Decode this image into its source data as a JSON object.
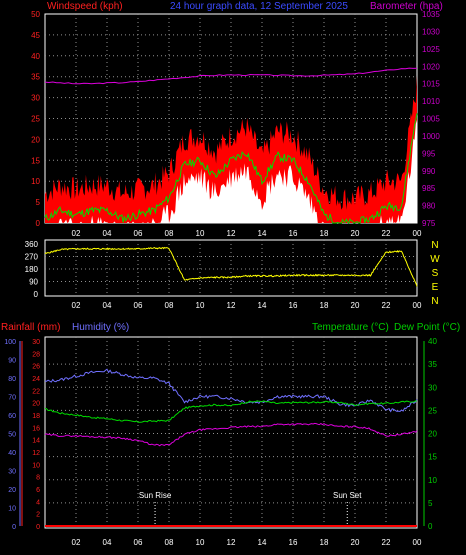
{
  "header": {
    "wind_label": "Windspeed (kph)",
    "title": "24 hour graph data, 12 September 2025",
    "baro_label": "Barometer (hpa)"
  },
  "colors": {
    "windspeed": "#ff0000",
    "gust": "#ff0000",
    "average": "#00dd00",
    "lull": "#ffffff",
    "barometer": "#dd00dd",
    "direction": "#ffff00",
    "rainfall": "#ff0000",
    "humidity": "#7070ff",
    "temperature": "#00dd00",
    "dew_point": "#dd00dd",
    "axis_left": "#ff2020",
    "axis_right_baro": "#cc00cc",
    "axis_hum": "#7070ff",
    "axis_temp": "#00cc00",
    "grid": "#909090"
  },
  "chart_data": [
    {
      "type": "area",
      "title": "24 hour graph data, 12 September 2025",
      "ylabel_left": "Windspeed (kph)",
      "ylabel_right": "Barometer (hpa)",
      "ylim_left": [
        0,
        50
      ],
      "ylim_right": [
        975,
        1035
      ],
      "yticks_left": [
        "0",
        "5",
        "10",
        "15",
        "20",
        "25",
        "30",
        "35",
        "40",
        "45",
        "50"
      ],
      "yticks_right": [
        "975",
        "980",
        "985",
        "990",
        "995",
        "1000",
        "1005",
        "1010",
        "1015",
        "1020",
        "1025",
        "1030",
        "1035"
      ],
      "x_hours": [
        0,
        1,
        2,
        3,
        4,
        5,
        6,
        7,
        8,
        9,
        10,
        11,
        12,
        13,
        14,
        15,
        16,
        17,
        18,
        19,
        20,
        21,
        22,
        23,
        24
      ],
      "series": [
        {
          "name": "Windspeed (kph)",
          "axis": "left",
          "values": [
            3,
            5,
            4,
            5,
            5,
            3,
            4,
            5,
            8,
            16,
            17,
            13,
            17,
            19,
            12,
            18,
            17,
            12,
            4,
            2,
            2,
            3,
            6,
            6,
            29
          ]
        },
        {
          "name": "Barometer (hpa)",
          "axis": "right",
          "values": [
            1015.5,
            1015.2,
            1015.0,
            1015.0,
            1015.2,
            1015.3,
            1015.6,
            1016.0,
            1016.4,
            1016.8,
            1017.2,
            1017.4,
            1017.5,
            1017.5,
            1017.5,
            1017.4,
            1017.3,
            1017.3,
            1017.4,
            1017.6,
            1017.8,
            1018.3,
            1018.8,
            1019.3,
            1019.5
          ]
        }
      ]
    },
    {
      "type": "line",
      "ylabels_right": [
        "N",
        "W",
        "S",
        "E",
        "N"
      ],
      "ylim": [
        0,
        360
      ],
      "yticks": [
        "0",
        "90",
        "180",
        "270",
        "360"
      ],
      "x_hours": [
        0,
        1,
        2,
        3,
        4,
        5,
        6,
        7,
        8,
        9,
        10,
        11,
        12,
        13,
        14,
        15,
        16,
        17,
        18,
        19,
        20,
        21,
        22,
        23,
        24
      ],
      "series": [
        {
          "name": "Wind direction",
          "values": [
            290,
            320,
            325,
            325,
            325,
            325,
            325,
            330,
            330,
            100,
            115,
            120,
            120,
            130,
            130,
            130,
            135,
            135,
            135,
            135,
            135,
            135,
            300,
            310,
            55
          ]
        }
      ]
    },
    {
      "type": "line",
      "legend": [
        "Rainfall (mm)",
        "Humidity (%)",
        "Temperature (°C)",
        "Dew Point (°C)"
      ],
      "ylim_rain": [
        0,
        30
      ],
      "yticks_rain": [
        "0",
        "2",
        "4",
        "6",
        "8",
        "10",
        "12",
        "14",
        "16",
        "18",
        "20",
        "22",
        "24",
        "26",
        "28",
        "30"
      ],
      "ylim_humidity": [
        0,
        100
      ],
      "yticks_humidity": [
        "0",
        "10",
        "20",
        "30",
        "40",
        "50",
        "60",
        "70",
        "80",
        "90",
        "100"
      ],
      "ylim_temp": [
        0,
        40
      ],
      "yticks_temp": [
        "0",
        "5",
        "10",
        "15",
        "20",
        "25",
        "30",
        "35",
        "40"
      ],
      "xticks": [
        "02",
        "04",
        "06",
        "08",
        "10",
        "12",
        "14",
        "16",
        "18",
        "20",
        "22",
        "00"
      ],
      "annotations": [
        {
          "label": "Sun Rise",
          "hour": 7.1
        },
        {
          "label": "Sun Set",
          "hour": 19.5
        }
      ],
      "x_hours": [
        0,
        1,
        2,
        3,
        4,
        5,
        6,
        7,
        8,
        9,
        10,
        11,
        12,
        13,
        14,
        15,
        16,
        17,
        18,
        19,
        20,
        21,
        22,
        23,
        24
      ],
      "series": [
        {
          "name": "Rainfall (mm)",
          "axis": "rain",
          "values": [
            0,
            0,
            0,
            0,
            0,
            0,
            0,
            0,
            0,
            0,
            0,
            0,
            0,
            0,
            0,
            0,
            0,
            0,
            0,
            0,
            0,
            0,
            0,
            0,
            0
          ]
        },
        {
          "name": "Humidity (%)",
          "axis": "humidity",
          "values": [
            78,
            79,
            81,
            83,
            84,
            82,
            80,
            80,
            77,
            67,
            70,
            70,
            69,
            67,
            67,
            70,
            70,
            70,
            70,
            66,
            65,
            68,
            63,
            62,
            68
          ]
        },
        {
          "name": "Temperature (°C)",
          "axis": "temp",
          "values": [
            25.3,
            24.4,
            24.0,
            23.5,
            23.2,
            22.8,
            22.5,
            22.7,
            22.8,
            25.5,
            26.0,
            26.2,
            26.0,
            26.8,
            27.0,
            26.5,
            26.7,
            26.7,
            26.8,
            26.7,
            26.2,
            26.5,
            26.5,
            26.8,
            27.0
          ]
        },
        {
          "name": "Dew Point (°C)",
          "axis": "temp",
          "values": [
            19.8,
            19.5,
            19.5,
            19.3,
            19.2,
            19.0,
            18.5,
            17.5,
            17.5,
            19.8,
            20.8,
            21.0,
            21.3,
            21.5,
            21.5,
            22.0,
            22.0,
            22.0,
            22.0,
            21.5,
            21.5,
            21.0,
            19.5,
            19.8,
            20.5
          ]
        }
      ]
    }
  ]
}
